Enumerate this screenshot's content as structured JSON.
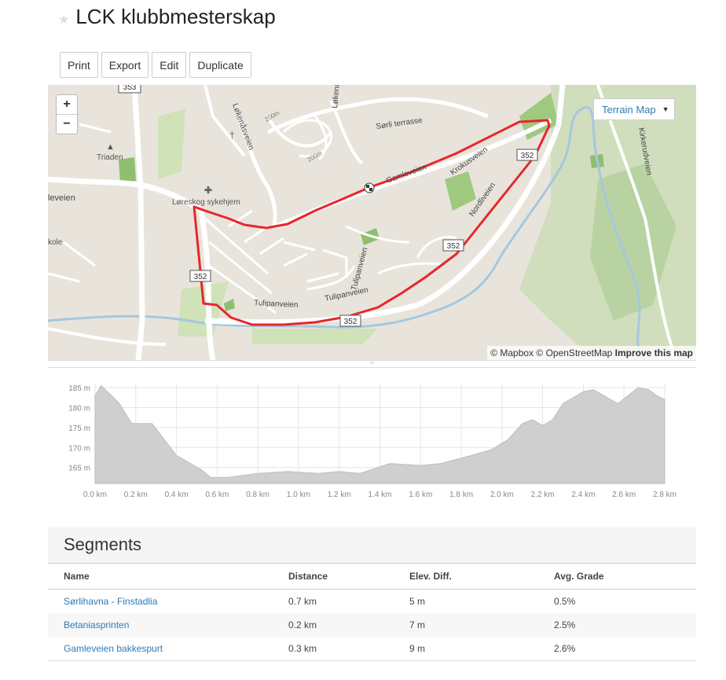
{
  "page": {
    "title": "LCK klubbmesterskap"
  },
  "toolbar": {
    "print": "Print",
    "export": "Export",
    "edit": "Edit",
    "duplicate": "Duplicate"
  },
  "map": {
    "zoom_in": "+",
    "zoom_out": "−",
    "layer": "Terrain Map",
    "attribution": "© Mapbox © OpenStreetMap",
    "improve": "Improve this map",
    "route_color": "#e8262a",
    "labels": {
      "triaden": "Triaden",
      "loreskog": "Løreskog sykehjem",
      "leveien": "leveien",
      "kole": "kole",
      "lokenasveien": "Løkenåsveien",
      "lokenasringen": "Løkenåsringen",
      "sorli": "Sørli terrasse",
      "gamleveien": "Gamleveien",
      "krokusveien": "Krokusveien",
      "nordliveien": "Nordliveien",
      "tulipanveien1": "Tulipanveien",
      "tulipanveien2": "Tulipanveien",
      "tulipanveien3": "Tulipanveien",
      "kirkerudveien": "Kirkerudveien",
      "r200a": "200m",
      "r200b": "200m",
      "shield353": "353",
      "shield352a": "352",
      "shield352b": "352",
      "shield352c": "352",
      "shield352d": "352"
    }
  },
  "chart_data": {
    "type": "area",
    "xlabel": "",
    "ylabel": "",
    "x_unit": "km",
    "y_unit": "m",
    "xlim": [
      0,
      2.8
    ],
    "ylim": [
      161,
      186
    ],
    "x_ticks": [
      "0.0 km",
      "0.2 km",
      "0.4 km",
      "0.6 km",
      "0.8 km",
      "1.0 km",
      "1.2 km",
      "1.4 km",
      "1.6 km",
      "1.8 km",
      "2.0 km",
      "2.2 km",
      "2.4 km",
      "2.6 km",
      "2.8 km"
    ],
    "y_ticks": [
      "165 m",
      "170 m",
      "175 m",
      "180 m",
      "185 m"
    ],
    "x": [
      0,
      0.03,
      0.12,
      0.18,
      0.28,
      0.4,
      0.52,
      0.57,
      0.65,
      0.8,
      0.95,
      1.1,
      1.2,
      1.3,
      1.45,
      1.6,
      1.7,
      1.85,
      1.95,
      2.03,
      2.1,
      2.15,
      2.2,
      2.25,
      2.3,
      2.4,
      2.45,
      2.5,
      2.57,
      2.62,
      2.67,
      2.72,
      2.76,
      2.8
    ],
    "y": [
      183,
      185.5,
      181,
      176,
      176,
      168,
      164.5,
      162.5,
      162.5,
      163.5,
      164,
      163.5,
      164,
      163.5,
      166,
      165.5,
      166,
      168,
      169.5,
      172,
      176,
      177,
      175.5,
      177,
      181,
      184,
      184.5,
      183,
      181,
      183,
      185,
      184.5,
      183,
      182
    ]
  },
  "segments": {
    "heading": "Segments",
    "columns": [
      "Name",
      "Distance",
      "Elev. Diff.",
      "Avg. Grade"
    ],
    "rows": [
      {
        "name": "Sørlihavna - Finstadlia",
        "distance": "0.7 km",
        "elev": "5 m",
        "grade": "0.5%"
      },
      {
        "name": "Betaniasprinten",
        "distance": "0.2 km",
        "elev": "7 m",
        "grade": "2.5%"
      },
      {
        "name": "Gamleveien bakkespurt",
        "distance": "0.3 km",
        "elev": "9 m",
        "grade": "2.6%"
      }
    ]
  }
}
